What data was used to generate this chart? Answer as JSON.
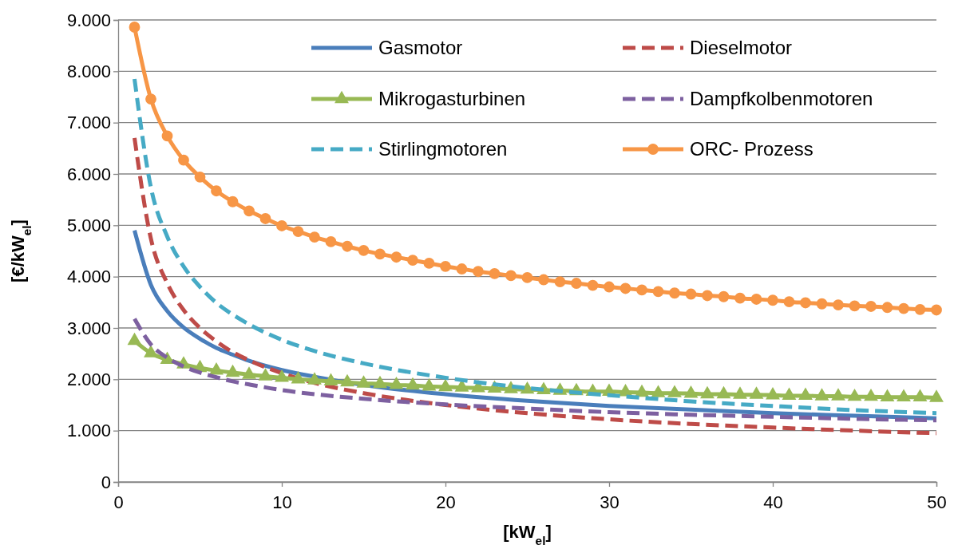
{
  "chart_data": {
    "type": "line",
    "xlabel": "[kW$_{el}$]",
    "ylabel": "[€/kW$_{el}$]",
    "xlim": [
      0,
      50
    ],
    "ylim": [
      0,
      9000
    ],
    "xticks": [
      0,
      10,
      20,
      30,
      40,
      50
    ],
    "yticks": [
      0,
      {
        "value": 1000,
        "label": "1.000"
      },
      {
        "value": 2000,
        "label": "2.000"
      },
      {
        "value": 3000,
        "label": "3.000"
      },
      {
        "value": 4000,
        "label": "4.000"
      },
      {
        "value": 5000,
        "label": "5.000"
      },
      {
        "value": 6000,
        "label": "6.000"
      },
      {
        "value": 7000,
        "label": "7.000"
      },
      {
        "value": 8000,
        "label": "8.000"
      },
      {
        "value": 9000,
        "label": "9.000"
      }
    ],
    "grid": "y",
    "legend": "top right",
    "marker": "none",
    "series": [
      {
        "name": "Gasmotor",
        "color": "#4a7ebb",
        "line_style": "solid",
        "x": [
          1,
          2,
          3,
          4,
          5,
          6,
          7,
          8,
          10,
          12,
          15,
          20,
          25,
          30,
          35,
          40,
          45,
          50
        ],
        "values": [
          4900,
          3840,
          3330,
          3010,
          2790,
          2610,
          2480,
          2360,
          2180,
          2050,
          1890,
          1710,
          1580,
          1480,
          1410,
          1340,
          1290,
          1240
        ]
      },
      {
        "name": "Dieselmotor",
        "color": "#be4b48",
        "line_style": "dashed",
        "x": [
          1,
          2,
          3,
          4,
          5,
          6,
          7,
          8,
          10,
          12,
          15,
          20,
          25,
          30,
          35,
          40,
          45,
          50
        ],
        "values": [
          6700,
          4740,
          3870,
          3350,
          3000,
          2740,
          2530,
          2370,
          2120,
          1930,
          1730,
          1500,
          1340,
          1220,
          1130,
          1060,
          1000,
          950
        ]
      },
      {
        "name": "Mikrogasturbinen",
        "color": "#98b954",
        "marker": "triangle",
        "line_style": "solid",
        "x": [
          1,
          2,
          3,
          4,
          5,
          6,
          7,
          8,
          9,
          10,
          11,
          12,
          13,
          14,
          15,
          16,
          17,
          18,
          19,
          20,
          21,
          22,
          23,
          24,
          25,
          26,
          27,
          28,
          29,
          30,
          31,
          32,
          33,
          34,
          35,
          36,
          37,
          38,
          39,
          40,
          41,
          42,
          43,
          44,
          45,
          46,
          47,
          48,
          49,
          50
        ],
        "values": [
          2750,
          2510,
          2380,
          2290,
          2220,
          2170,
          2130,
          2090,
          2060,
          2030,
          2000,
          1980,
          1960,
          1940,
          1920,
          1910,
          1890,
          1880,
          1860,
          1850,
          1840,
          1830,
          1820,
          1810,
          1800,
          1790,
          1780,
          1770,
          1760,
          1760,
          1750,
          1740,
          1730,
          1730,
          1720,
          1710,
          1710,
          1700,
          1700,
          1690,
          1680,
          1680,
          1670,
          1670,
          1660,
          1660,
          1650,
          1650,
          1650,
          1640
        ]
      },
      {
        "name": "Dampfkolbenmotoren",
        "color": "#7d60a0",
        "line_style": "dashed",
        "x": [
          1,
          2,
          3,
          4,
          5,
          6,
          7,
          8,
          10,
          12,
          15,
          20,
          25,
          30,
          35,
          40,
          45,
          50
        ],
        "values": [
          3180,
          2680,
          2420,
          2250,
          2130,
          2040,
          1960,
          1900,
          1790,
          1710,
          1620,
          1510,
          1430,
          1360,
          1310,
          1270,
          1230,
          1200
        ]
      },
      {
        "name": "Stirlingmotoren",
        "color": "#46aac5",
        "line_style": "dashed",
        "x": [
          1,
          2,
          3,
          4,
          5,
          6,
          7,
          8,
          10,
          12,
          15,
          20,
          25,
          30,
          35,
          40,
          45,
          50
        ],
        "values": [
          7850,
          5740,
          4780,
          4200,
          3800,
          3490,
          3260,
          3070,
          2770,
          2550,
          2310,
          2030,
          1830,
          1690,
          1570,
          1480,
          1400,
          1340
        ]
      },
      {
        "name": "ORC- Prozess",
        "color": "#f79646",
        "marker": "circle",
        "line_style": "solid",
        "x": [
          1,
          2,
          3,
          4,
          5,
          6,
          7,
          8,
          9,
          10,
          11,
          12,
          13,
          14,
          15,
          16,
          17,
          18,
          19,
          20,
          21,
          22,
          23,
          24,
          25,
          26,
          27,
          28,
          29,
          30,
          31,
          32,
          33,
          34,
          35,
          36,
          37,
          38,
          39,
          40,
          41,
          42,
          43,
          44,
          45,
          46,
          47,
          48,
          49,
          50
        ],
        "values": [
          8860,
          7460,
          6740,
          6270,
          5940,
          5670,
          5460,
          5280,
          5130,
          4990,
          4880,
          4770,
          4680,
          4590,
          4510,
          4440,
          4380,
          4320,
          4260,
          4200,
          4150,
          4100,
          4060,
          4020,
          3980,
          3940,
          3900,
          3870,
          3830,
          3800,
          3770,
          3740,
          3710,
          3680,
          3660,
          3630,
          3610,
          3580,
          3560,
          3540,
          3510,
          3490,
          3470,
          3450,
          3430,
          3420,
          3400,
          3380,
          3360,
          3350
        ]
      }
    ]
  }
}
